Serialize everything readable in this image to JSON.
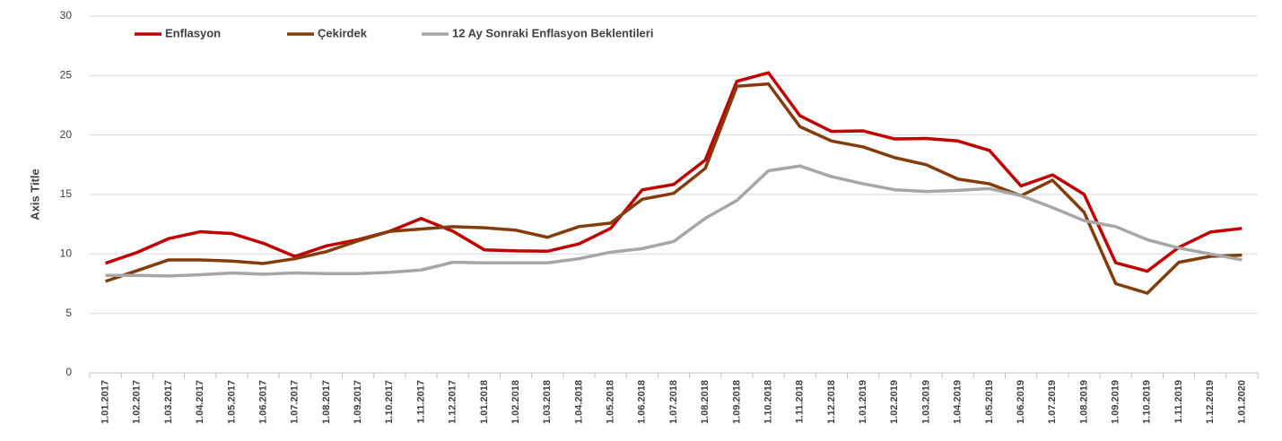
{
  "chart_data": {
    "type": "line",
    "y_label": "Axis Title",
    "categories": [
      "1.01.2017",
      "1.02.2017",
      "1.03.2017",
      "1.04.2017",
      "1.05.2017",
      "1.06.2017",
      "1.07.2017",
      "1.08.2017",
      "1.09.2017",
      "1.10.2017",
      "1.11.2017",
      "1.12.2017",
      "1.01.2018",
      "1.02.2018",
      "1.03.2018",
      "1.04.2018",
      "1.05.2018",
      "1.06.2018",
      "1.07.2018",
      "1.08.2018",
      "1.09.2018",
      "1.10.2018",
      "1.11.2018",
      "1.12.2018",
      "1.01.2019",
      "1.02.2019",
      "1.03.2019",
      "1.04.2019",
      "1.05.2019",
      "1.06.2019",
      "1.07.2019",
      "1.08.2019",
      "1.09.2019",
      "1.10.2019",
      "1.11.2019",
      "1.12.2019",
      "1.01.2020"
    ],
    "series": [
      {
        "name": "Enflasyon",
        "color": "#c00000",
        "values": [
          9.22,
          10.13,
          11.29,
          11.87,
          11.72,
          10.9,
          9.79,
          10.68,
          11.2,
          11.9,
          12.98,
          11.92,
          10.35,
          10.26,
          10.23,
          10.85,
          12.15,
          15.39,
          15.85,
          17.9,
          24.52,
          25.24,
          21.62,
          20.3,
          20.35,
          19.67,
          19.71,
          19.5,
          18.71,
          15.72,
          16.65,
          15.01,
          9.26,
          8.55,
          10.56,
          11.84,
          12.15
        ]
      },
      {
        "name": "Çekirdek",
        "color": "#843c0c",
        "values": [
          7.7,
          8.6,
          9.5,
          9.5,
          9.4,
          9.2,
          9.6,
          10.2,
          11.1,
          11.9,
          12.1,
          12.3,
          12.2,
          12.0,
          11.4,
          12.3,
          12.6,
          14.6,
          15.1,
          17.2,
          24.1,
          24.3,
          20.7,
          19.5,
          19.0,
          18.1,
          17.5,
          16.3,
          15.9,
          14.9,
          16.2,
          13.5,
          7.5,
          6.7,
          9.3,
          9.8,
          9.9
        ]
      },
      {
        "name": "12 Ay Sonraki Enflasyon Beklentileri",
        "color": "#a6a6a6",
        "values": [
          8.2,
          8.2,
          8.15,
          8.25,
          8.4,
          8.3,
          8.4,
          8.35,
          8.35,
          8.45,
          8.65,
          9.3,
          9.25,
          9.25,
          9.25,
          9.6,
          10.15,
          10.45,
          11.05,
          13.0,
          14.5,
          17.0,
          17.4,
          16.5,
          15.9,
          15.4,
          15.25,
          15.35,
          15.5,
          14.9,
          13.9,
          12.8,
          12.3,
          11.2,
          10.5,
          10.0,
          9.5
        ]
      }
    ],
    "ylim": [
      0,
      30
    ],
    "yticks": [
      0,
      5,
      10,
      15,
      20,
      25,
      30
    ],
    "grid": true
  }
}
